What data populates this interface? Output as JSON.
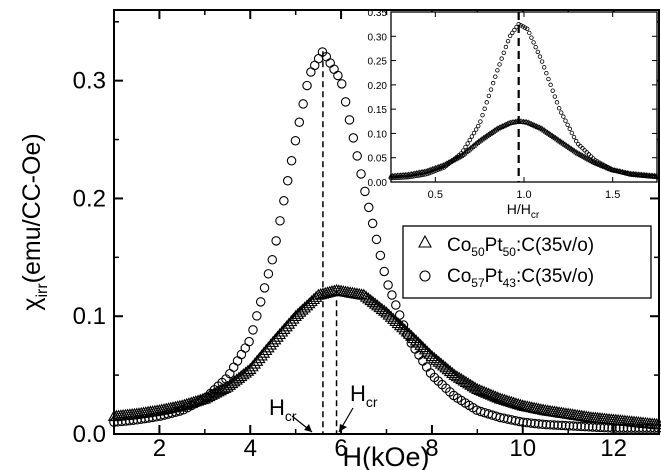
{
  "chart_data": [
    {
      "type": "scatter",
      "xlabel": "H(kOe)",
      "ylabel_prefix": "χ",
      "ylabel_sub": "irr",
      "ylabel_suffix": "(emu/CC-Oe)",
      "xlim": [
        1,
        13
      ],
      "ylim": [
        0,
        0.36
      ],
      "xticks": [
        2,
        4,
        6,
        8,
        10,
        12
      ],
      "yticks": [
        0.0,
        0.1,
        0.2,
        0.3
      ],
      "ytick_labels": [
        "0.0",
        "0.1",
        "0.2",
        "0.3"
      ],
      "series": [
        {
          "name": "Co50Pt50:C(35v/o)",
          "name_parts": [
            "Co",
            "50",
            "Pt",
            "50",
            ":C(35v/o)"
          ],
          "marker": "triangle",
          "peak_x": 5.9,
          "x": [
            1.0,
            1.5,
            2.0,
            2.5,
            3.0,
            3.5,
            4.0,
            4.5,
            5.0,
            5.5,
            5.9,
            6.5,
            7.0,
            7.5,
            8.0,
            8.5,
            9.0,
            9.5,
            10.0,
            10.5,
            11.0,
            11.5,
            12.0,
            12.5,
            13.0
          ],
          "y": [
            0.015,
            0.017,
            0.02,
            0.024,
            0.03,
            0.04,
            0.055,
            0.078,
            0.1,
            0.118,
            0.122,
            0.118,
            0.103,
            0.085,
            0.066,
            0.05,
            0.038,
            0.03,
            0.024,
            0.02,
            0.017,
            0.014,
            0.012,
            0.01,
            0.008
          ]
        },
        {
          "name": "Co57Pt43:C(35v/o)",
          "name_parts": [
            "Co",
            "57",
            "Pt",
            "43",
            ":C(35v/o)"
          ],
          "marker": "circle",
          "peak_x": 5.6,
          "x": [
            1.0,
            1.5,
            2.0,
            2.5,
            3.0,
            3.5,
            4.0,
            4.5,
            5.0,
            5.3,
            5.6,
            6.0,
            6.5,
            7.0,
            7.5,
            8.0,
            8.5,
            9.0,
            9.5,
            10.0,
            10.5,
            11.0,
            11.5,
            12.0,
            12.5,
            13.0
          ],
          "y": [
            0.01,
            0.012,
            0.015,
            0.02,
            0.03,
            0.048,
            0.08,
            0.15,
            0.25,
            0.305,
            0.325,
            0.3,
            0.21,
            0.13,
            0.08,
            0.05,
            0.032,
            0.02,
            0.014,
            0.01,
            0.008,
            0.007,
            0.006,
            0.005,
            0.005,
            0.005
          ]
        }
      ],
      "annotations": [
        {
          "label_main": "H",
          "label_sub": "cr",
          "x": 5.6
        },
        {
          "label_main": "H",
          "label_sub": "cr",
          "x": 5.9
        }
      ],
      "legend": "right"
    },
    {
      "type": "scatter",
      "role": "inset",
      "xlabel_main": "H/H",
      "xlabel_sub": "cr",
      "xlim": [
        0.25,
        1.75
      ],
      "ylim": [
        0,
        0.35
      ],
      "xticks": [
        0.5,
        1.0,
        1.5
      ],
      "xtick_labels": [
        "0.5",
        "1.0",
        "1.5"
      ],
      "yticks": [
        0.0,
        0.05,
        0.1,
        0.15,
        0.2,
        0.25,
        0.3,
        0.35
      ],
      "ytick_labels": [
        "0.00",
        "0.05",
        "0.10",
        "0.15",
        "0.20",
        "0.25",
        "0.30",
        "0.35"
      ],
      "guide_x": 0.97,
      "series": [
        {
          "name": "Co50Pt50:C(35v/o)",
          "marker": "triangle",
          "x": [
            0.25,
            0.35,
            0.45,
            0.55,
            0.65,
            0.75,
            0.85,
            0.92,
            0.97,
            1.02,
            1.1,
            1.2,
            1.3,
            1.4,
            1.5,
            1.6,
            1.75
          ],
          "y": [
            0.012,
            0.015,
            0.022,
            0.035,
            0.055,
            0.085,
            0.11,
            0.122,
            0.125,
            0.123,
            0.11,
            0.085,
            0.06,
            0.04,
            0.025,
            0.017,
            0.012
          ]
        },
        {
          "name": "Co57Pt43:C(35v/o)",
          "marker": "circle",
          "x": [
            0.25,
            0.35,
            0.45,
            0.55,
            0.65,
            0.75,
            0.85,
            0.92,
            0.97,
            1.02,
            1.1,
            1.2,
            1.3,
            1.4,
            1.5,
            1.6,
            1.75
          ],
          "y": [
            0.008,
            0.01,
            0.016,
            0.03,
            0.06,
            0.12,
            0.23,
            0.3,
            0.325,
            0.315,
            0.25,
            0.15,
            0.08,
            0.045,
            0.025,
            0.015,
            0.01
          ]
        }
      ]
    }
  ]
}
